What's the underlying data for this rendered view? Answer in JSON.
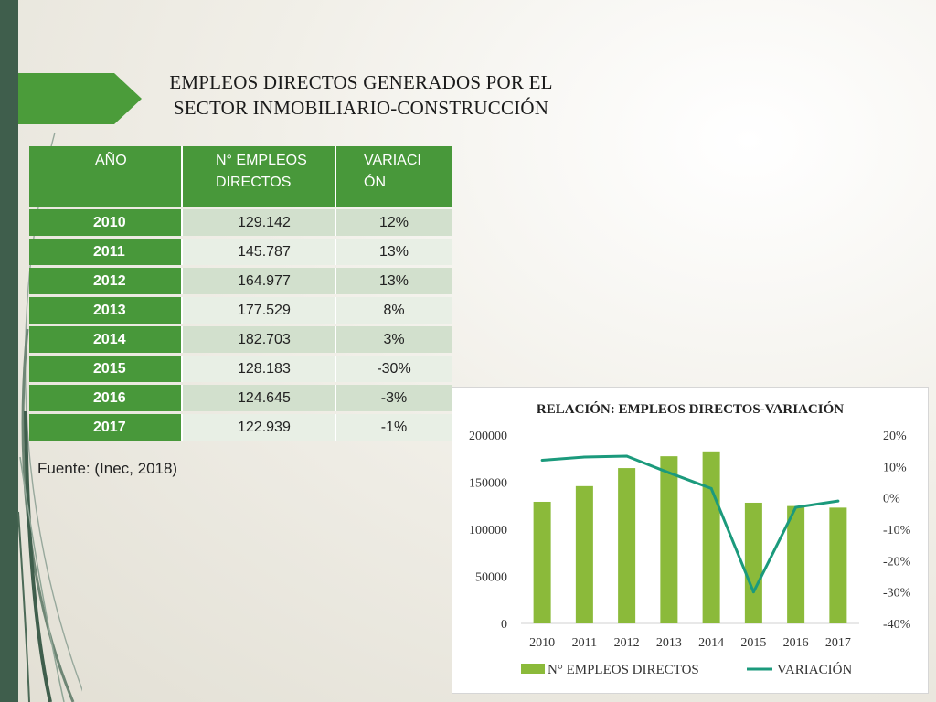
{
  "title": {
    "line1": "EMPLEOS DIRECTOS GENERADOS POR EL",
    "line2": "SECTOR INMOBILIARIO-CONSTRUCCIÓN"
  },
  "table": {
    "headers": [
      "AÑO",
      "N° EMPLEOS DIRECTOS",
      "VARIACIÓN"
    ],
    "header_lines": [
      [
        "AÑO"
      ],
      [
        "N° EMPLEOS",
        "DIRECTOS"
      ],
      [
        "VARIACI",
        "ÓN"
      ]
    ],
    "rows": [
      {
        "year": "2010",
        "employees": "129.142",
        "variation": "12%"
      },
      {
        "year": "2011",
        "employees": "145.787",
        "variation": "13%"
      },
      {
        "year": "2012",
        "employees": "164.977",
        "variation": "13%"
      },
      {
        "year": "2013",
        "employees": "177.529",
        "variation": "8%"
      },
      {
        "year": "2014",
        "employees": "182.703",
        "variation": "3%"
      },
      {
        "year": "2015",
        "employees": "128.183",
        "variation": "-30%"
      },
      {
        "year": "2016",
        "employees": "124.645",
        "variation": "-3%"
      },
      {
        "year": "2017",
        "employees": "122.939",
        "variation": "-1%"
      }
    ]
  },
  "source": "Fuente: (Inec, 2018)",
  "colors": {
    "header_green": "#48983a",
    "row_shade": "#d2e0cd",
    "row_light": "#e8efe5",
    "bar": "#8bba3a",
    "line": "#1b9a7c",
    "strip": "#3f5e4c"
  },
  "chart_data": {
    "type": "bar",
    "title": "RELACIÓN: EMPLEOS DIRECTOS-VARIACIÓN",
    "categories": [
      "2010",
      "2011",
      "2012",
      "2013",
      "2014",
      "2015",
      "2016",
      "2017"
    ],
    "series": [
      {
        "name": "N° EMPLEOS DIRECTOS",
        "type": "bar",
        "axis": "left",
        "values": [
          129142,
          145787,
          164977,
          177529,
          182703,
          128183,
          124645,
          122939
        ]
      },
      {
        "name": "VARIACIÓN",
        "type": "line",
        "axis": "right",
        "values": [
          0.12,
          0.13,
          0.133,
          0.08,
          0.03,
          -0.3,
          -0.03,
          -0.01
        ]
      }
    ],
    "ylim_left": [
      0,
      200000
    ],
    "yticks_left": [
      "0",
      "50000",
      "100000",
      "150000",
      "200000"
    ],
    "ylim_right": [
      -0.4,
      0.2
    ],
    "yticks_right": [
      "-40%",
      "-30%",
      "-20%",
      "-10%",
      "0%",
      "10%",
      "20%"
    ],
    "legend": "bottom",
    "grid": false
  }
}
